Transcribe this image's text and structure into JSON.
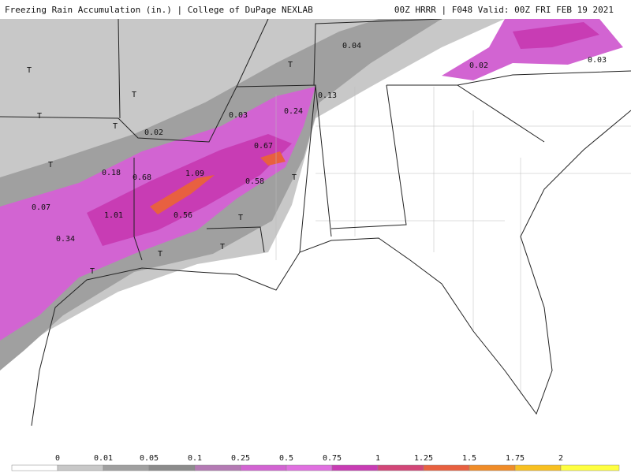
{
  "header": {
    "left": "Freezing Rain Accumulation (in.) | College of DuPage NEXLAB",
    "right": "00Z HRRR | F048 Valid: 00Z FRI FEB 19 2021"
  },
  "map_labels": [
    "0.04",
    "T",
    "0.02",
    "0.03",
    "T",
    "T",
    "0.13",
    "0.24",
    "0.03",
    "T",
    "T",
    "0.02",
    "0.67",
    "T",
    "0.18",
    "0.68",
    "1.09",
    "0.58",
    "T",
    "0.07",
    "1.01",
    "0.56",
    "T",
    "0.34",
    "T",
    "T",
    "T"
  ],
  "colorbar": {
    "labels": [
      "0",
      "0.01",
      "0.05",
      "0.1",
      "0.25",
      "0.5",
      "0.75",
      "1",
      "1.25",
      "1.5",
      "1.75",
      "2"
    ],
    "colors": [
      "#ffffff",
      "#c8c8c8",
      "#a0a0a0",
      "#8c8c8c",
      "#b47ab4",
      "#d264d2",
      "#e070e0",
      "#c83cb4",
      "#d24678",
      "#e86040",
      "#f08c28",
      "#f8c020",
      "#ffff40"
    ]
  }
}
